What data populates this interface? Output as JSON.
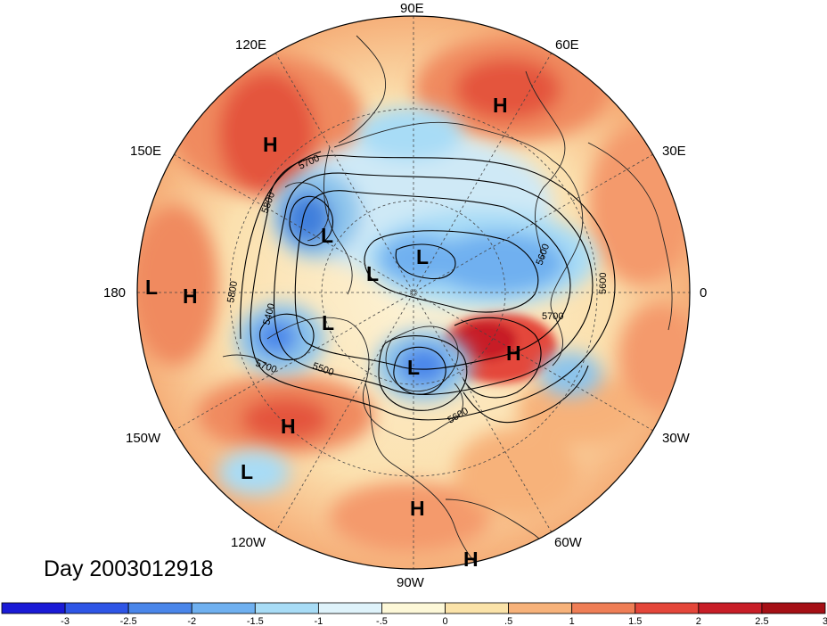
{
  "date_label": "Day 2003012918",
  "lon_labels": {
    "e90": "90E",
    "e120": "120E",
    "e60": "60E",
    "e150": "150E",
    "e30": "30E",
    "d180": "180",
    "d0": "0",
    "w150": "150W",
    "w30": "30W",
    "w120": "120W",
    "w60": "60W",
    "w90": "90W"
  },
  "pressure_centers": [
    {
      "id": "h-siberia-east",
      "letter": "H"
    },
    {
      "id": "h-ural",
      "letter": "H"
    },
    {
      "id": "l-siberia-east",
      "letter": "L"
    },
    {
      "id": "l-arctic",
      "letter": "L"
    },
    {
      "id": "l-arctic-2",
      "letter": "L"
    },
    {
      "id": "l-dateline",
      "letter": "L"
    },
    {
      "id": "h-dateline",
      "letter": "H"
    },
    {
      "id": "l-alaska",
      "letter": "L"
    },
    {
      "id": "l-hudson",
      "letter": "L"
    },
    {
      "id": "h-atlantic",
      "letter": "H"
    },
    {
      "id": "h-pacific",
      "letter": "H"
    },
    {
      "id": "l-pacific",
      "letter": "L"
    },
    {
      "id": "h-mexico",
      "letter": "H"
    },
    {
      "id": "h-sa",
      "letter": "H"
    }
  ],
  "contour_labels": [
    "5700",
    "5800",
    "5400",
    "5500",
    "5600",
    "5700",
    "5800",
    "5600",
    "5700",
    "5600"
  ],
  "colorbar": {
    "colors": [
      "#1a1ad6",
      "#2e55e6",
      "#4a86ea",
      "#6fb0f0",
      "#a8dcf6",
      "#dff3fb",
      "#fdf8d8",
      "#fbe3a9",
      "#f7b27a",
      "#ef7e56",
      "#e4463a",
      "#c81d27",
      "#a50f15"
    ],
    "tick_labels": [
      "-3",
      "-2.5",
      "-2",
      "-1.5",
      "-1",
      "-.5",
      "0",
      ".5",
      "1",
      "1.5",
      "2",
      "2.5",
      "3"
    ]
  },
  "colors": {
    "warm_strong": "#e65a40",
    "warm": "#f49a6c",
    "warm_light": "#fbd7a3",
    "neutral": "#fdf3d6",
    "cool_light": "#cfe9f6",
    "cool": "#8cc4ec",
    "cool_strong": "#3f7fdc"
  }
}
